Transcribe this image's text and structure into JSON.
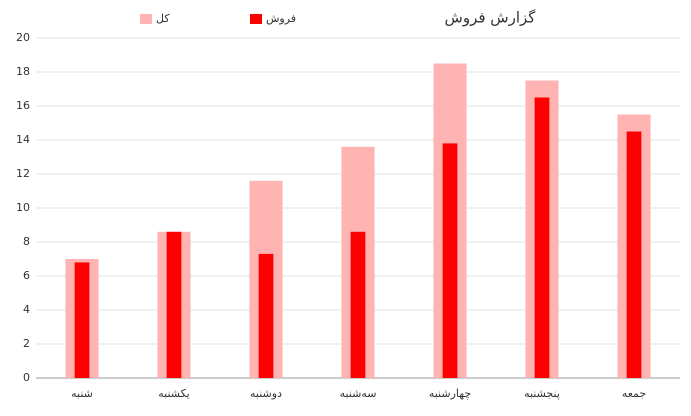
{
  "chart_data": {
    "type": "bar",
    "title": "گزارش فروش",
    "categories": [
      "شنبه",
      "یکشنبه",
      "دوشنبه",
      "سه‌شنبه",
      "چهارشنبه",
      "پنجشنبه",
      "جمعه"
    ],
    "series": [
      {
        "name": "کل",
        "color": "#ffb3b3",
        "values": [
          7,
          8.6,
          11.6,
          13.6,
          18.5,
          17.5,
          15.5
        ]
      },
      {
        "name": "فروش",
        "color": "#ff0000",
        "values": [
          6.8,
          8.6,
          7.3,
          8.6,
          13.8,
          16.5,
          14.5
        ]
      }
    ],
    "ylim": [
      0,
      20
    ],
    "yticks": [
      0,
      2,
      4,
      6,
      8,
      10,
      12,
      14,
      16,
      18,
      20
    ],
    "grid": true
  }
}
